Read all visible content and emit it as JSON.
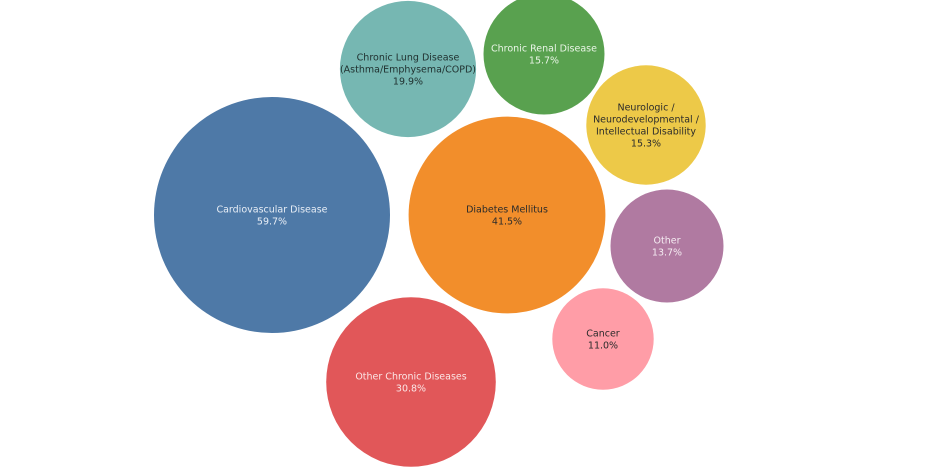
{
  "chart_data": {
    "type": "bubble",
    "value_format": "percent",
    "bubbles": [
      {
        "label": "Cardiovascular Disease",
        "lines": [
          "Cardiovascular Disease"
        ],
        "value": 59.7,
        "value_text": "59.7%",
        "color": "#4e79a7",
        "text_color": "#e8eef6"
      },
      {
        "label": "Diabetes Mellitus",
        "lines": [
          "Diabetes Mellitus"
        ],
        "value": 41.5,
        "value_text": "41.5%",
        "color": "#f28e2b",
        "text_color": "#2b2b2b"
      },
      {
        "label": "Other Chronic Diseases",
        "lines": [
          "Other Chronic Diseases"
        ],
        "value": 30.8,
        "value_text": "30.8%",
        "color": "#e15759",
        "text_color": "#fbe6e6"
      },
      {
        "label": "Chronic Lung Disease (Asthma/Emphysema/COPD)",
        "lines": [
          "Chronic Lung Disease",
          "(Asthma/Emphysema/COPD)"
        ],
        "value": 19.9,
        "value_text": "19.9%",
        "color": "#76b7b2",
        "text_color": "#1f2f2e"
      },
      {
        "label": "Chronic Renal Disease",
        "lines": [
          "Chronic Renal Disease"
        ],
        "value": 15.7,
        "value_text": "15.7%",
        "color": "#59a14f",
        "text_color": "#eaf5e7"
      },
      {
        "label": "Neurologic / Neurodevelopmental / Intellectual Disability",
        "lines": [
          "Neurologic /",
          "Neurodevelopmental /",
          "Intellectual Disability"
        ],
        "value": 15.3,
        "value_text": "15.3%",
        "color": "#edc948",
        "text_color": "#2b2b2b"
      },
      {
        "label": "Other",
        "lines": [
          "Other"
        ],
        "value": 13.7,
        "value_text": "13.7%",
        "color": "#b07aa1",
        "text_color": "#f5ecf2"
      },
      {
        "label": "Cancer",
        "lines": [
          "Cancer"
        ],
        "value": 11.0,
        "value_text": "11.0%",
        "color": "#ff9da7",
        "text_color": "#2b2b2b"
      }
    ]
  }
}
